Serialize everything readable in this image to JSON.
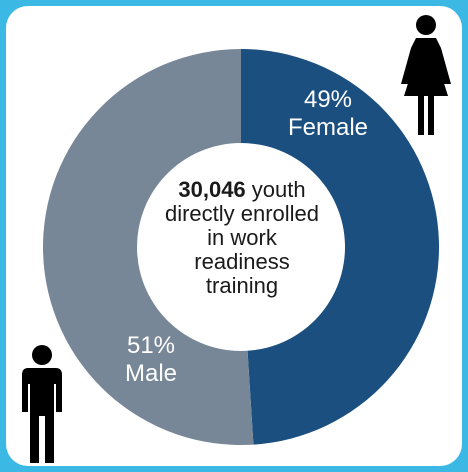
{
  "chart_data": {
    "type": "pie",
    "categories": [
      "Female",
      "Male"
    ],
    "values": [
      49,
      51
    ],
    "colors": [
      "#1b4f7f",
      "#778797"
    ],
    "slice_labels": [
      {
        "percent": "49%",
        "name": "Female"
      },
      {
        "percent": "51%",
        "name": "Male"
      }
    ],
    "center": {
      "number": "30,046",
      "text": "youth directly enrolled in work readiness training"
    }
  },
  "icons": {
    "female": "female-person-icon",
    "male": "male-person-icon"
  }
}
